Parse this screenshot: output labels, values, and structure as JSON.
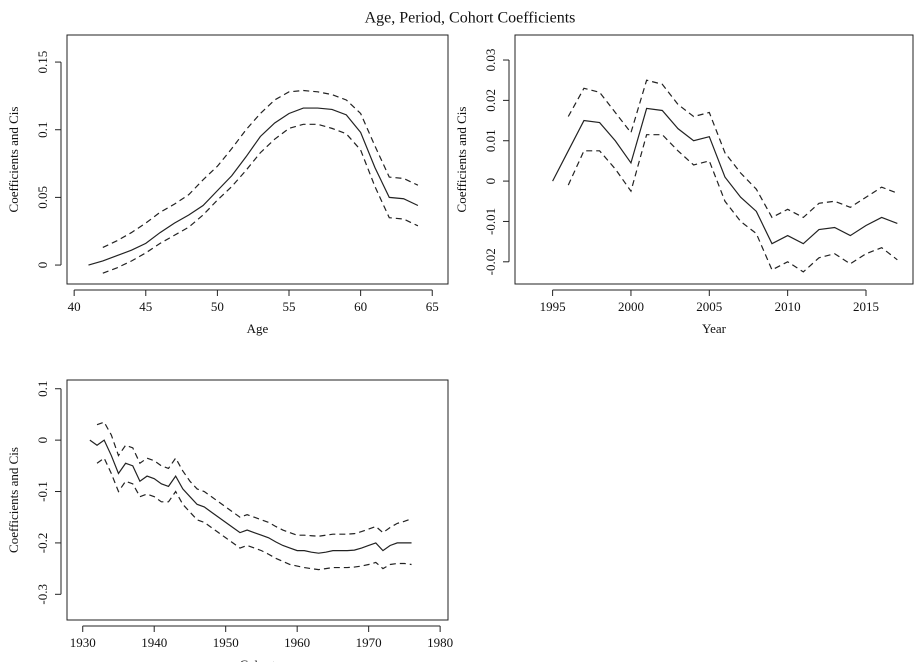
{
  "title": "Age, Period, Cohort Coefficients",
  "chart_data": [
    {
      "type": "line",
      "xlabel": "Age",
      "ylabel": "Coefficients and Cis",
      "x": [
        41,
        42,
        43,
        44,
        45,
        46,
        47,
        48,
        49,
        50,
        51,
        52,
        53,
        54,
        55,
        56,
        57,
        58,
        59,
        60,
        61,
        62,
        63,
        64
      ],
      "xlim": [
        39.5,
        66.1
      ],
      "xticks": [
        40,
        45,
        50,
        55,
        60,
        65
      ],
      "ylim": [
        -0.014,
        0.17
      ],
      "yticks": [
        0,
        0.05,
        0.1,
        0.15
      ],
      "series": [
        {
          "color": "#222222",
          "dashed": false,
          "values": [
            0,
            0.003,
            0.007,
            0.011,
            0.016,
            0.024,
            0.031,
            0.037,
            0.044,
            0.055,
            0.066,
            0.08,
            0.095,
            0.105,
            0.112,
            0.116,
            0.116,
            0.115,
            0.111,
            0.098,
            0.072,
            0.05,
            0.049,
            0.044
          ]
        },
        {
          "color": "#222222",
          "dashed": true,
          "values": [
            null,
            0.013,
            0.018,
            0.024,
            0.031,
            0.039,
            0.045,
            0.052,
            0.063,
            0.073,
            0.086,
            0.1,
            0.112,
            0.122,
            0.128,
            0.129,
            0.128,
            0.126,
            0.122,
            0.112,
            0.088,
            0.065,
            0.064,
            0.059
          ]
        },
        {
          "color": "#222222",
          "dashed": true,
          "values": [
            null,
            -0.006,
            -0.002,
            0.003,
            0.009,
            0.016,
            0.022,
            0.028,
            0.037,
            0.048,
            0.058,
            0.07,
            0.083,
            0.093,
            0.101,
            0.104,
            0.104,
            0.101,
            0.097,
            0.085,
            0.058,
            0.035,
            0.034,
            0.029
          ]
        }
      ]
    },
    {
      "type": "line",
      "xlabel": "Year",
      "ylabel": "Coefficients and Cis",
      "x": [
        1995,
        1996,
        1997,
        1998,
        1999,
        2000,
        2001,
        2002,
        2003,
        2004,
        2005,
        2006,
        2007,
        2008,
        2009,
        2010,
        2011,
        2012,
        2013,
        2014,
        2015,
        2016,
        2017
      ],
      "xlim": [
        1992.6,
        2018
      ],
      "xticks": [
        1995,
        2000,
        2005,
        2010,
        2015
      ],
      "ylim": [
        -0.0255,
        0.0362
      ],
      "yticks": [
        -0.02,
        -0.01,
        0,
        0.01,
        0.02,
        0.03
      ],
      "series": [
        {
          "color": "#222222",
          "dashed": false,
          "values": [
            0,
            0.0075,
            0.015,
            0.0145,
            0.01,
            0.0045,
            0.018,
            0.0175,
            0.013,
            0.01,
            0.011,
            0.001,
            -0.004,
            -0.0075,
            -0.0155,
            -0.0135,
            -0.0155,
            -0.012,
            -0.0115,
            -0.0135,
            -0.011,
            -0.009,
            -0.0105
          ]
        },
        {
          "color": "#222222",
          "dashed": true,
          "values": [
            null,
            0.016,
            0.023,
            0.022,
            0.017,
            0.012,
            0.025,
            0.024,
            0.019,
            0.016,
            0.017,
            0.007,
            0.002,
            -0.002,
            -0.009,
            -0.007,
            -0.009,
            -0.0055,
            -0.005,
            -0.0065,
            -0.004,
            -0.0015,
            -0.003
          ]
        },
        {
          "color": "#222222",
          "dashed": true,
          "values": [
            null,
            -0.001,
            0.0075,
            0.0075,
            0.003,
            -0.0025,
            0.0115,
            0.0115,
            0.0075,
            0.004,
            0.005,
            -0.005,
            -0.01,
            -0.013,
            -0.022,
            -0.02,
            -0.0225,
            -0.019,
            -0.018,
            -0.0205,
            -0.018,
            -0.0165,
            -0.0195
          ]
        }
      ]
    },
    {
      "type": "line",
      "xlabel": "Cohort",
      "ylabel": "Coefficients and Cis",
      "x": [
        1931,
        1932,
        1933,
        1934,
        1935,
        1936,
        1937,
        1938,
        1939,
        1940,
        1941,
        1942,
        1943,
        1944,
        1945,
        1946,
        1947,
        1948,
        1949,
        1950,
        1951,
        1952,
        1953,
        1954,
        1955,
        1956,
        1957,
        1958,
        1959,
        1960,
        1961,
        1962,
        1963,
        1964,
        1965,
        1966,
        1967,
        1968,
        1969,
        1970,
        1971,
        1972,
        1973,
        1974,
        1975,
        1976
      ],
      "xlim": [
        1927.8,
        1981.1
      ],
      "xticks": [
        1930,
        1940,
        1950,
        1960,
        1970,
        1980
      ],
      "ylim": [
        -0.35,
        0.117
      ],
      "yticks": [
        -0.3,
        -0.2,
        -0.1,
        0,
        0.1
      ],
      "series": [
        {
          "color": "#222222",
          "dashed": false,
          "values": [
            0,
            -0.01,
            0,
            -0.03,
            -0.065,
            -0.045,
            -0.05,
            -0.08,
            -0.07,
            -0.075,
            -0.085,
            -0.09,
            -0.07,
            -0.095,
            -0.11,
            -0.125,
            -0.13,
            -0.14,
            -0.15,
            -0.16,
            -0.17,
            -0.18,
            -0.175,
            -0.18,
            -0.185,
            -0.19,
            -0.198,
            -0.205,
            -0.21,
            -0.215,
            -0.215,
            -0.218,
            -0.22,
            -0.218,
            -0.215,
            -0.215,
            -0.215,
            -0.214,
            -0.21,
            -0.205,
            -0.2,
            -0.215,
            -0.205,
            -0.2,
            -0.2,
            -0.2
          ]
        },
        {
          "color": "#222222",
          "dashed": true,
          "values": [
            null,
            0.03,
            0.035,
            0.01,
            -0.03,
            -0.01,
            -0.015,
            -0.045,
            -0.035,
            -0.04,
            -0.05,
            -0.055,
            -0.035,
            -0.06,
            -0.08,
            -0.095,
            -0.1,
            -0.11,
            -0.12,
            -0.13,
            -0.14,
            -0.15,
            -0.145,
            -0.15,
            -0.155,
            -0.16,
            -0.168,
            -0.175,
            -0.18,
            -0.185,
            -0.185,
            -0.186,
            -0.187,
            -0.185,
            -0.183,
            -0.183,
            -0.183,
            -0.182,
            -0.178,
            -0.173,
            -0.168,
            -0.18,
            -0.17,
            -0.162,
            -0.158,
            -0.153
          ]
        },
        {
          "color": "#222222",
          "dashed": true,
          "values": [
            null,
            -0.045,
            -0.035,
            -0.065,
            -0.1,
            -0.08,
            -0.085,
            -0.11,
            -0.105,
            -0.11,
            -0.12,
            -0.12,
            -0.1,
            -0.125,
            -0.14,
            -0.155,
            -0.16,
            -0.17,
            -0.18,
            -0.19,
            -0.2,
            -0.21,
            -0.205,
            -0.21,
            -0.215,
            -0.222,
            -0.23,
            -0.236,
            -0.242,
            -0.245,
            -0.248,
            -0.25,
            -0.252,
            -0.25,
            -0.248,
            -0.248,
            -0.248,
            -0.247,
            -0.245,
            -0.242,
            -0.238,
            -0.25,
            -0.242,
            -0.24,
            -0.24,
            -0.242
          ]
        }
      ]
    }
  ]
}
